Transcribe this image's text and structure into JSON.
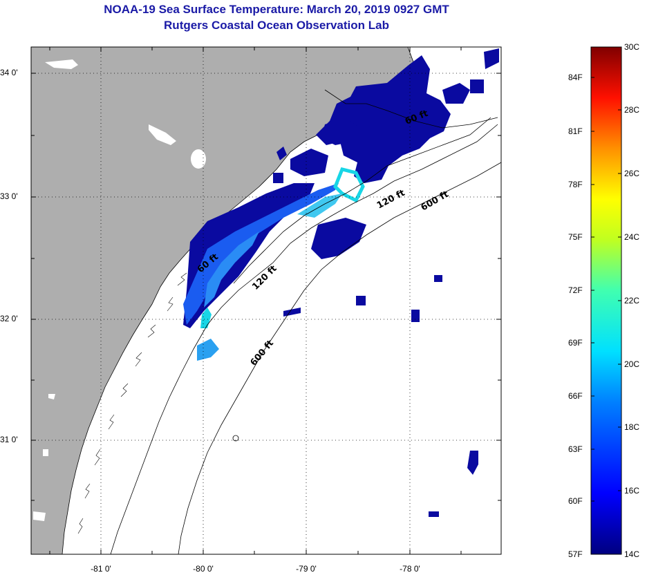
{
  "title": "NOAA-19 Sea Surface Temperature:  March 20, 2019 0927 GMT",
  "subtitle": "Rutgers Coastal Ocean Observation Lab",
  "map": {
    "lon_ticks": [
      "-81 0'",
      "-80 0'",
      "-79 0'",
      "-78 0'"
    ],
    "lat_ticks": [
      "34 0'",
      "33 0'",
      "32 0'",
      "31 0'"
    ],
    "contour_labels": [
      "60 ft",
      "120 ft",
      "600 ft",
      "60 ft",
      "120 ft",
      "600 ft"
    ],
    "colors": {
      "land": "#aeaeae",
      "ocean": "#ffffff",
      "cold": "#0a0aa0",
      "mid": "#1a5cf0",
      "warm": "#18d6e6"
    }
  },
  "colorbar": {
    "celsius_labels": [
      "30C",
      "28C",
      "26C",
      "24C",
      "22C",
      "20C",
      "18C",
      "16C",
      "14C"
    ],
    "fahrenheit_labels": [
      "84F",
      "81F",
      "78F",
      "75F",
      "72F",
      "69F",
      "66F",
      "63F",
      "60F",
      "57F"
    ],
    "range_c": [
      14,
      30
    ]
  }
}
